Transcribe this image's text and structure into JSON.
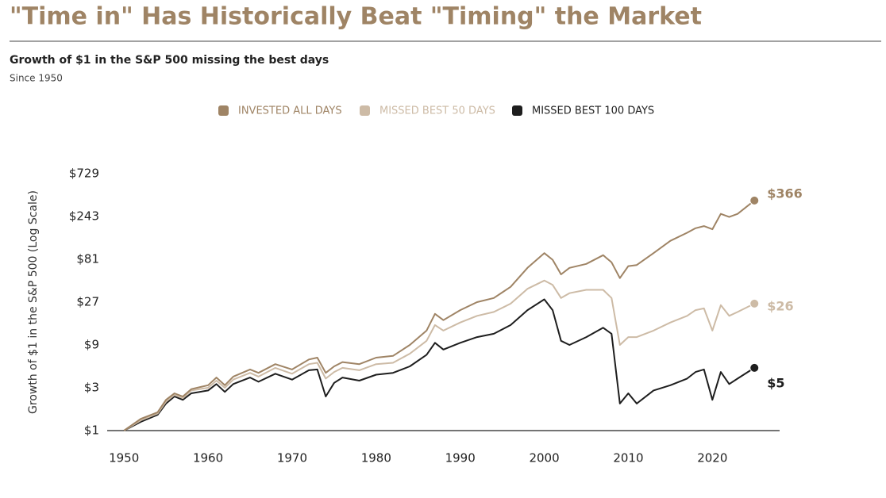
{
  "chart_data": {
    "type": "line",
    "title": "\"Time in\" Has Historically Beat \"Timing\" the Market",
    "subtitle": "Growth of $1 in the S&P 500 missing the best days",
    "note": "Since 1950",
    "y_label": "Growth of $1 in the S&P 500 (Log Scale)",
    "y_scale": "log",
    "grid": false,
    "legend": "top",
    "x": [
      1950,
      1952,
      1954,
      1955,
      1956,
      1957,
      1958,
      1960,
      1961,
      1962,
      1963,
      1965,
      1966,
      1968,
      1970,
      1972,
      1973,
      1974,
      1975,
      1976,
      1978,
      1980,
      1982,
      1984,
      1986,
      1987,
      1988,
      1990,
      1992,
      1994,
      1996,
      1998,
      2000,
      2001,
      2002,
      2003,
      2005,
      2007,
      2008,
      2009,
      2010,
      2011,
      2013,
      2015,
      2017,
      2018,
      2019,
      2020,
      2021,
      2022,
      2023,
      2025
    ],
    "xlim": [
      1948,
      2028
    ],
    "xticks": [
      1950,
      1960,
      1970,
      1980,
      1990,
      2000,
      2010,
      2020
    ],
    "ylim": [
      1,
      729
    ],
    "yticks": [
      {
        "value": 1,
        "label": "$1"
      },
      {
        "value": 3,
        "label": "$3"
      },
      {
        "value": 9,
        "label": "$9"
      },
      {
        "value": 27,
        "label": "$27"
      },
      {
        "value": 81,
        "label": "$81"
      },
      {
        "value": 243,
        "label": "$243"
      },
      {
        "value": 729,
        "label": "$729"
      }
    ],
    "series": [
      {
        "name": "INVESTED ALL DAYS",
        "color": "#9f8465",
        "values": [
          1,
          1.35,
          1.6,
          2.2,
          2.6,
          2.4,
          2.9,
          3.2,
          3.9,
          3.2,
          4.0,
          4.8,
          4.4,
          5.5,
          4.8,
          6.2,
          6.5,
          4.4,
          5.2,
          5.8,
          5.5,
          6.5,
          6.8,
          9,
          13,
          20,
          17,
          22,
          27,
          30,
          40,
          65,
          95,
          80,
          55,
          65,
          72,
          90,
          75,
          50,
          68,
          70,
          95,
          130,
          160,
          180,
          190,
          175,
          260,
          240,
          260,
          366
        ],
        "value_labels": [
          null,
          null,
          null,
          null,
          null,
          null,
          null,
          null,
          null,
          null,
          null,
          null,
          null,
          null,
          null,
          null,
          null,
          null,
          null,
          null,
          null,
          null,
          null,
          null,
          null,
          null,
          null,
          null,
          null,
          null,
          null,
          null,
          null,
          null,
          null,
          null,
          null,
          null,
          null,
          null,
          null,
          null,
          null,
          null,
          null,
          null,
          null,
          null,
          null,
          null,
          null,
          "$366"
        ]
      },
      {
        "name": "MISSED BEST 50 DAYS",
        "color": "#cdbba6",
        "values": [
          1,
          1.3,
          1.55,
          2.1,
          2.5,
          2.3,
          2.8,
          3.0,
          3.6,
          3.0,
          3.7,
          4.4,
          4.0,
          5.0,
          4.3,
          5.5,
          5.7,
          3.8,
          4.5,
          5.0,
          4.7,
          5.5,
          5.7,
          7.2,
          10,
          15,
          13,
          16,
          19,
          21,
          26,
          38,
          47,
          42,
          30,
          34,
          37,
          37,
          30,
          9,
          11,
          11,
          13,
          16,
          19,
          22,
          23,
          13,
          25,
          19,
          21,
          26
        ],
        "value_labels": [
          null,
          null,
          null,
          null,
          null,
          null,
          null,
          null,
          null,
          null,
          null,
          null,
          null,
          null,
          null,
          null,
          null,
          null,
          null,
          null,
          null,
          null,
          null,
          null,
          null,
          null,
          null,
          null,
          null,
          null,
          null,
          null,
          null,
          null,
          null,
          null,
          null,
          null,
          null,
          null,
          null,
          null,
          null,
          null,
          null,
          null,
          null,
          null,
          null,
          null,
          null,
          "$26"
        ]
      },
      {
        "name": "MISSED BEST 100 DAYS",
        "color": "#1e1e1e",
        "values": [
          1,
          1.25,
          1.5,
          2.0,
          2.4,
          2.2,
          2.6,
          2.8,
          3.3,
          2.7,
          3.3,
          3.9,
          3.5,
          4.3,
          3.7,
          4.7,
          4.8,
          2.4,
          3.4,
          3.9,
          3.6,
          4.2,
          4.4,
          5.2,
          7.0,
          9.5,
          8.0,
          9.5,
          11,
          12,
          15,
          22,
          29,
          22,
          10,
          9,
          11,
          14,
          12,
          2.0,
          2.6,
          2.0,
          2.8,
          3.2,
          3.8,
          4.5,
          4.8,
          2.2,
          4.5,
          3.3,
          3.8,
          5
        ],
        "value_labels": [
          null,
          null,
          null,
          null,
          null,
          null,
          null,
          null,
          null,
          null,
          null,
          null,
          null,
          null,
          null,
          null,
          null,
          null,
          null,
          null,
          null,
          null,
          null,
          null,
          null,
          null,
          null,
          null,
          null,
          null,
          null,
          null,
          null,
          null,
          null,
          null,
          null,
          null,
          null,
          null,
          null,
          null,
          null,
          null,
          null,
          null,
          null,
          null,
          null,
          null,
          null,
          "$5"
        ]
      }
    ]
  }
}
